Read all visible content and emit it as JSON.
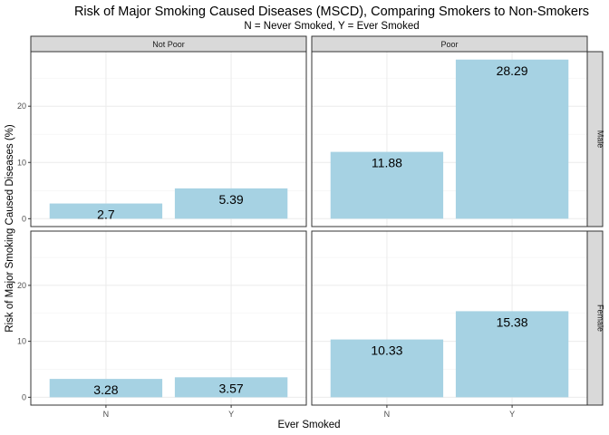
{
  "chart_data": {
    "type": "bar",
    "title": "Risk of Major Smoking Caused Diseases (MSCD), Comparing Smokers to Non-Smokers",
    "subtitle": "N = Never Smoked, Y = Ever Smoked",
    "xlabel": "Ever Smoked",
    "ylabel": "Risk of Major Smoking Caused Diseases (%)",
    "categories": [
      "N",
      "Y"
    ],
    "ylim": [
      0,
      30
    ],
    "yticks": [
      0,
      10,
      20
    ],
    "grid": true,
    "bar_color": "#a6d2e3",
    "column_facets": [
      "Not Poor",
      "Poor"
    ],
    "row_facets": [
      "Male",
      "Female"
    ],
    "panels": [
      {
        "row": "Male",
        "col": "Not Poor",
        "values": [
          2.7,
          5.39
        ],
        "labels": [
          "2.7",
          "5.39"
        ]
      },
      {
        "row": "Male",
        "col": "Poor",
        "values": [
          11.88,
          28.29
        ],
        "labels": [
          "11.88",
          "28.29"
        ]
      },
      {
        "row": "Female",
        "col": "Not Poor",
        "values": [
          3.28,
          3.57
        ],
        "labels": [
          "3.28",
          "3.57"
        ]
      },
      {
        "row": "Female",
        "col": "Poor",
        "values": [
          10.33,
          15.38
        ],
        "labels": [
          "10.33",
          "15.38"
        ]
      }
    ]
  }
}
